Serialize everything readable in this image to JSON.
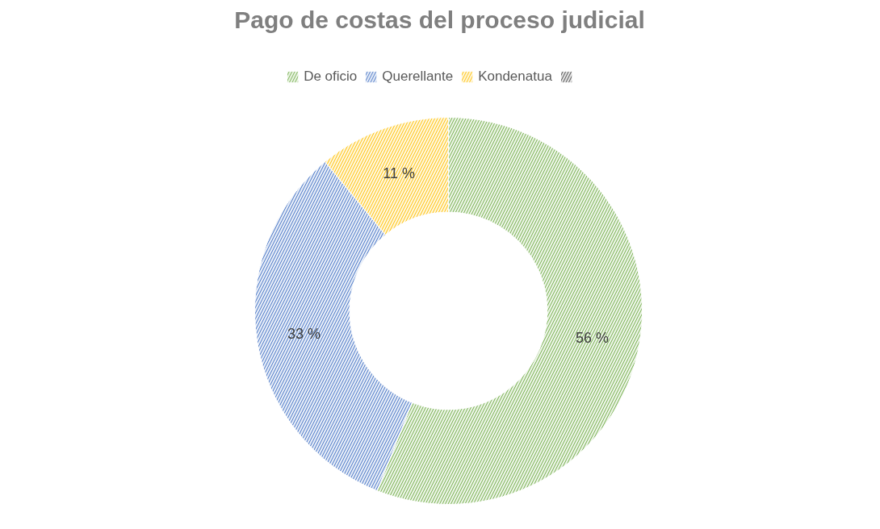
{
  "chart_data": {
    "type": "donut",
    "title": "Pago de costas del proceso judicial",
    "categories": [
      "De oficio",
      "Querellante",
      "Kondenatua",
      null
    ],
    "values": [
      56,
      33,
      11,
      0
    ],
    "colors": [
      "#70ad47",
      "#4472c4",
      "#ffc000",
      "#404040"
    ],
    "value_labels": [
      "56 %",
      "33 %",
      "11 %",
      null
    ],
    "legend": "top"
  }
}
